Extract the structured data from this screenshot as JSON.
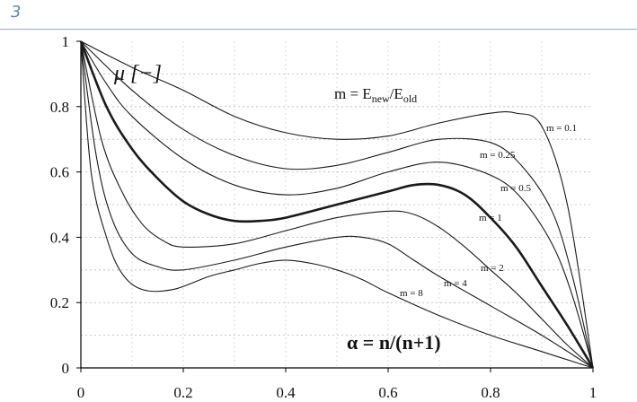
{
  "page": {
    "number": "3"
  },
  "chart_data": {
    "type": "line",
    "xlim": [
      0,
      1
    ],
    "ylim": [
      0,
      1
    ],
    "x_ticks": [
      "0",
      "0.2",
      "0.4",
      "0.6",
      "0.8",
      "1"
    ],
    "y_ticks": [
      "0",
      "0.2",
      "0.4",
      "0.6",
      "0.8",
      "1"
    ],
    "grid": true,
    "y_axis_label": "μ [−]",
    "x_axis_label": "α = n/(n+1)",
    "formula": {
      "prefix": "m = E",
      "sub1": "new",
      "mid": "/E",
      "sub2": "old"
    },
    "series": [
      {
        "name": "m = 0.1",
        "bold": false,
        "x": [
          0,
          0.1,
          0.2,
          0.3,
          0.4,
          0.5,
          0.6,
          0.7,
          0.8,
          0.85,
          0.9,
          0.95,
          1
        ],
        "y": [
          1,
          0.92,
          0.85,
          0.77,
          0.72,
          0.7,
          0.71,
          0.75,
          0.78,
          0.78,
          0.74,
          0.5,
          0
        ]
      },
      {
        "name": "m = 0.25",
        "bold": false,
        "x": [
          0,
          0.1,
          0.2,
          0.3,
          0.4,
          0.5,
          0.6,
          0.7,
          0.8,
          0.86,
          0.92,
          0.96,
          1
        ],
        "y": [
          1,
          0.85,
          0.73,
          0.65,
          0.61,
          0.62,
          0.66,
          0.7,
          0.69,
          0.62,
          0.48,
          0.28,
          0
        ]
      },
      {
        "name": "m = 0.5",
        "bold": false,
        "x": [
          0,
          0.05,
          0.1,
          0.2,
          0.3,
          0.4,
          0.5,
          0.6,
          0.7,
          0.8,
          0.86,
          0.92,
          0.96,
          1
        ],
        "y": [
          1,
          0.87,
          0.77,
          0.64,
          0.56,
          0.53,
          0.55,
          0.6,
          0.63,
          0.59,
          0.52,
          0.38,
          0.22,
          0
        ]
      },
      {
        "name": "m = 1",
        "bold": true,
        "x": [
          0,
          0.05,
          0.1,
          0.15,
          0.2,
          0.25,
          0.3,
          0.35,
          0.4,
          0.5,
          0.6,
          0.65,
          0.7,
          0.75,
          0.8,
          0.85,
          0.9,
          0.95,
          1
        ],
        "y": [
          1,
          0.8,
          0.67,
          0.58,
          0.51,
          0.47,
          0.45,
          0.45,
          0.46,
          0.5,
          0.54,
          0.56,
          0.56,
          0.53,
          0.46,
          0.37,
          0.25,
          0.13,
          0
        ]
      },
      {
        "name": "m = 2",
        "bold": false,
        "x": [
          0,
          0.04,
          0.08,
          0.12,
          0.16,
          0.2,
          0.3,
          0.4,
          0.5,
          0.6,
          0.65,
          0.7,
          0.75,
          0.8,
          0.85,
          0.9,
          0.95,
          1
        ],
        "y": [
          1,
          0.7,
          0.54,
          0.44,
          0.39,
          0.37,
          0.38,
          0.42,
          0.46,
          0.48,
          0.47,
          0.43,
          0.37,
          0.3,
          0.23,
          0.15,
          0.07,
          0
        ]
      },
      {
        "name": "m = 4",
        "bold": false,
        "x": [
          0,
          0.03,
          0.06,
          0.1,
          0.15,
          0.2,
          0.3,
          0.4,
          0.5,
          0.55,
          0.6,
          0.65,
          0.7,
          0.8,
          0.9,
          1
        ],
        "y": [
          1,
          0.65,
          0.46,
          0.35,
          0.31,
          0.3,
          0.33,
          0.37,
          0.4,
          0.4,
          0.38,
          0.33,
          0.28,
          0.19,
          0.1,
          0
        ]
      },
      {
        "name": "m = 8",
        "bold": false,
        "x": [
          0,
          0.02,
          0.05,
          0.08,
          0.12,
          0.18,
          0.25,
          0.3,
          0.35,
          0.4,
          0.45,
          0.5,
          0.55,
          0.6,
          0.7,
          0.8,
          0.9,
          1
        ],
        "y": [
          1,
          0.6,
          0.4,
          0.29,
          0.24,
          0.24,
          0.28,
          0.3,
          0.32,
          0.33,
          0.32,
          0.3,
          0.27,
          0.23,
          0.16,
          0.1,
          0.05,
          0
        ]
      }
    ]
  }
}
